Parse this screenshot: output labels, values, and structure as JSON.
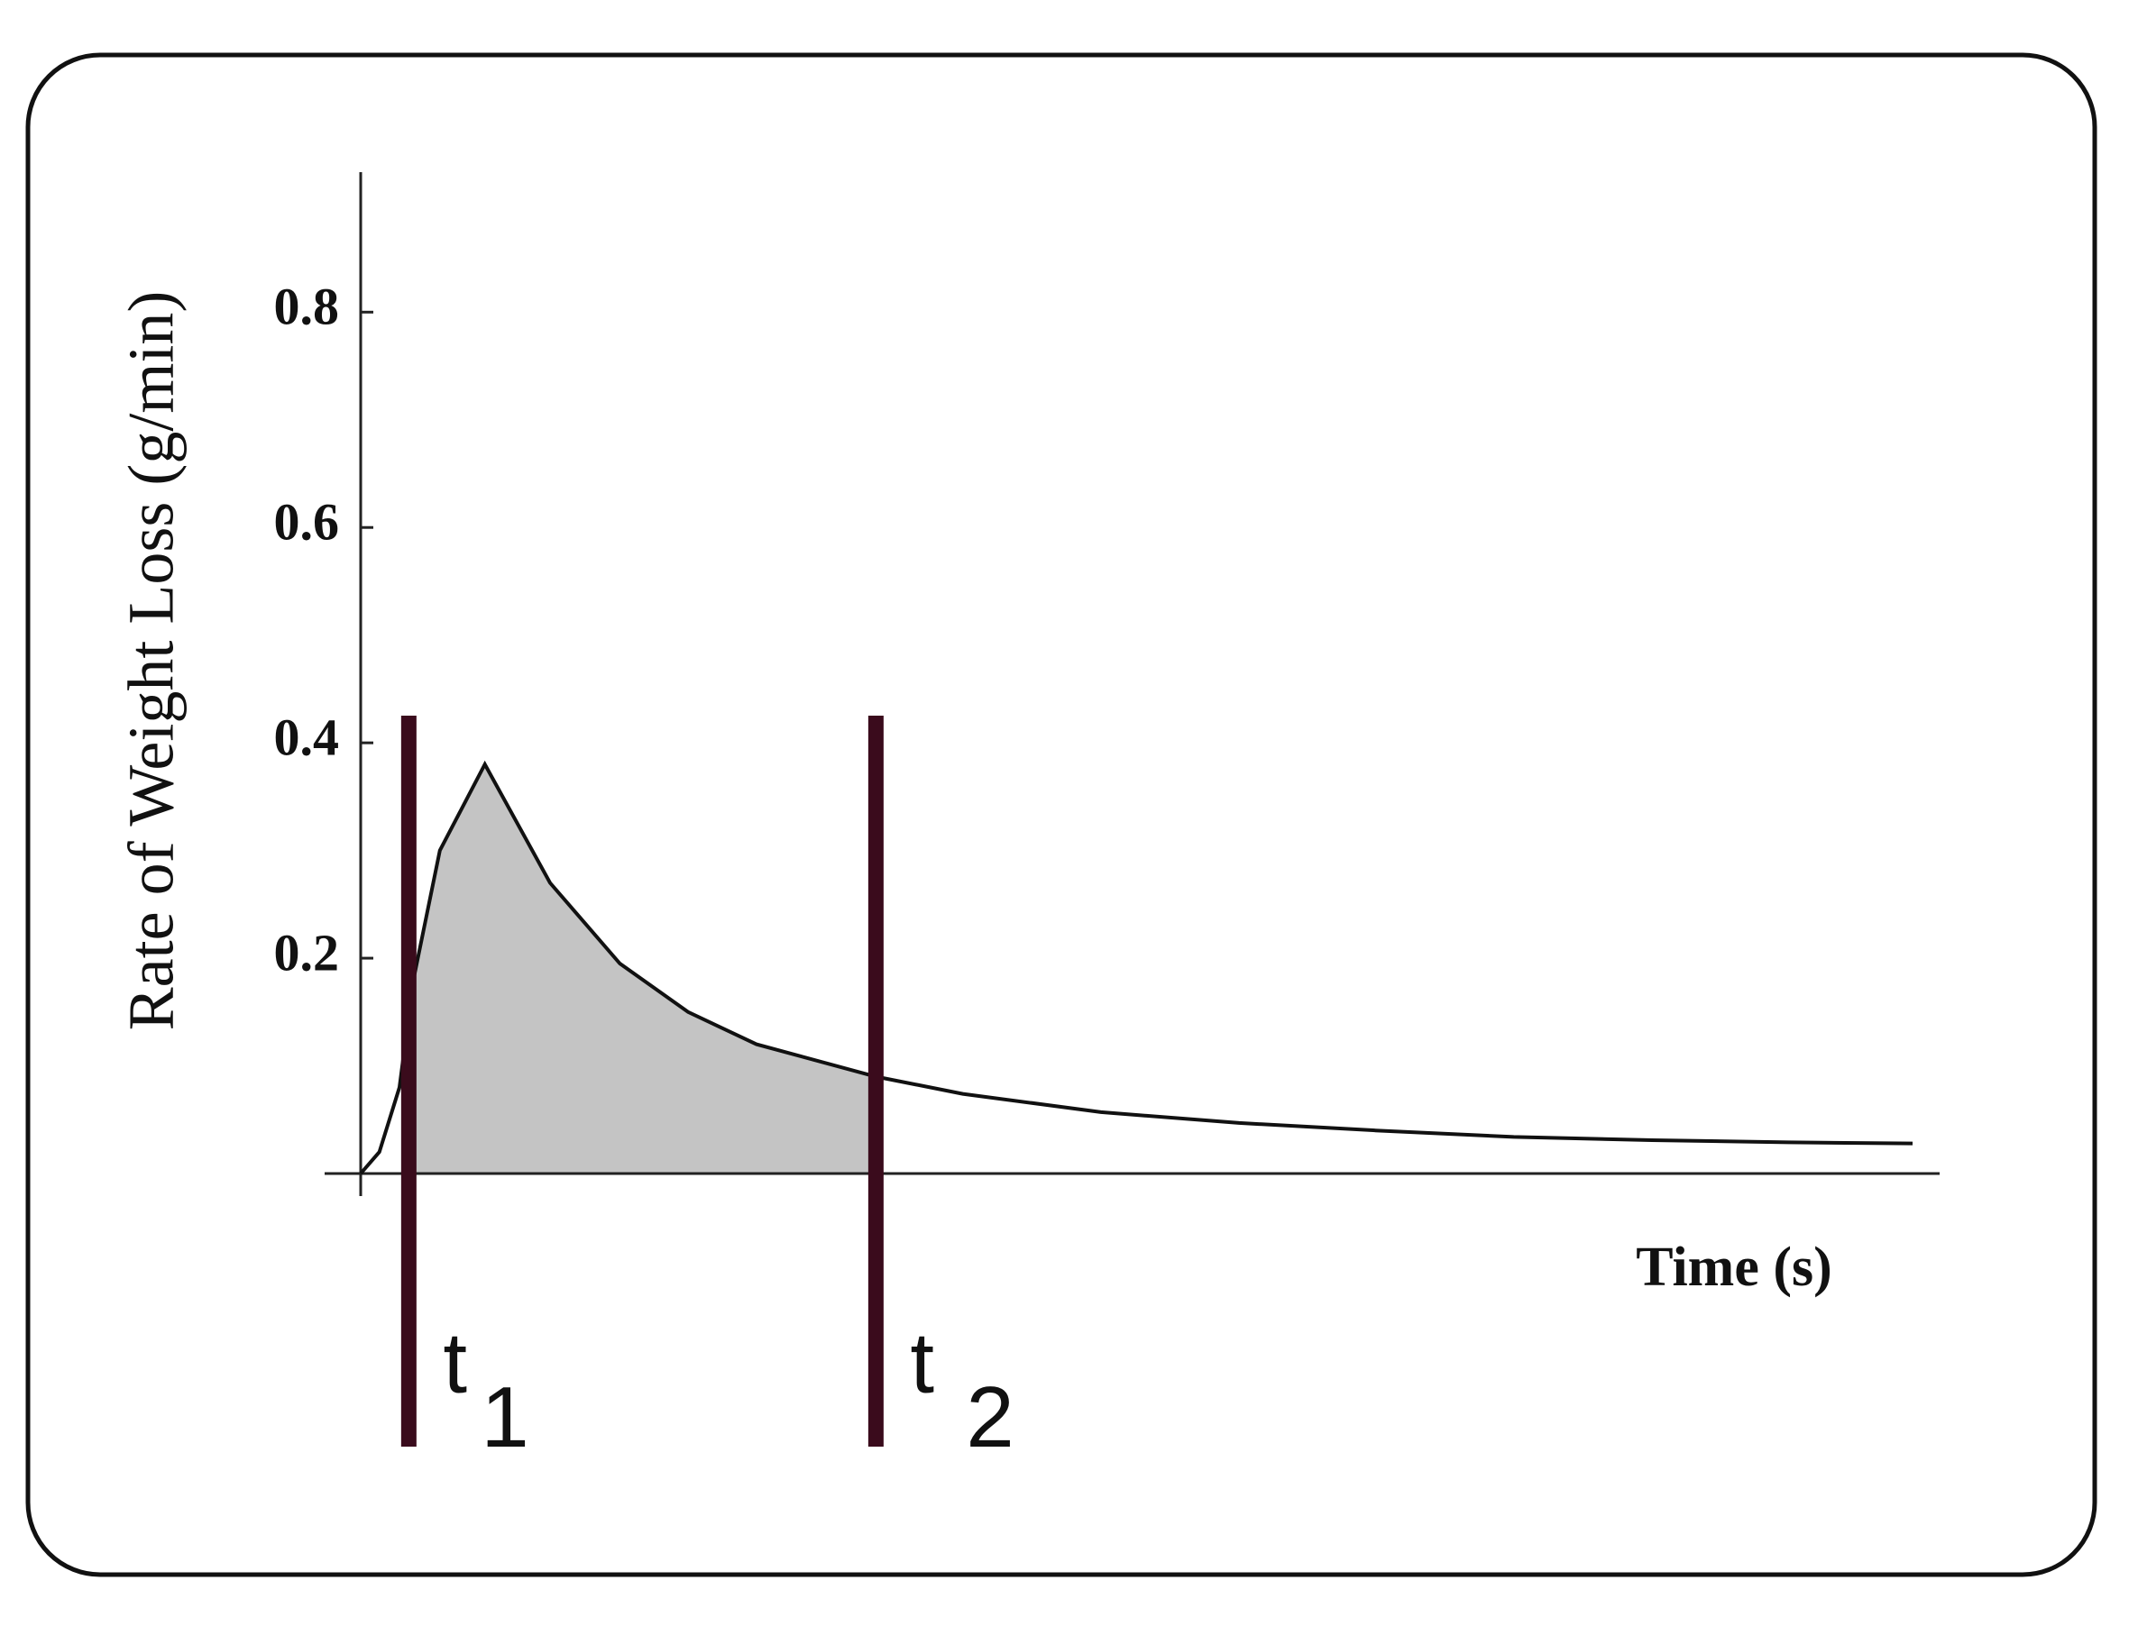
{
  "chart_data": {
    "type": "line",
    "y_label": "Rate of Weight Loss (g/min)",
    "x_label": "Time (s)",
    "x": [
      0,
      1.2,
      2.5,
      3.4,
      5.1,
      8,
      12.2,
      16.7,
      21.1,
      25.5,
      33.2,
      38.8,
      47.7,
      56.6,
      65.4,
      74.3,
      83.2,
      92,
      100
    ],
    "series": [
      {
        "color": "#111111",
        "fill": "#c4c4c4",
        "values": [
          0,
          0.02,
          0.08,
          0.18,
          0.3,
          0.38,
          0.27,
          0.195,
          0.15,
          0.12,
          0.09,
          0.074,
          0.057,
          0.047,
          0.04,
          0.034,
          0.031,
          0.029,
          0.028
        ]
      }
    ],
    "xlim": [
      0,
      100
    ],
    "ylim": [
      0,
      0.93
    ],
    "yticks": [
      0.2,
      0.4,
      0.6,
      0.8
    ],
    "markers": [
      {
        "label": "t",
        "sub": "1",
        "x": 3.1
      },
      {
        "label": "t",
        "sub": "2",
        "x": 33.2
      }
    ],
    "marker_color": "#3a0b1c"
  }
}
